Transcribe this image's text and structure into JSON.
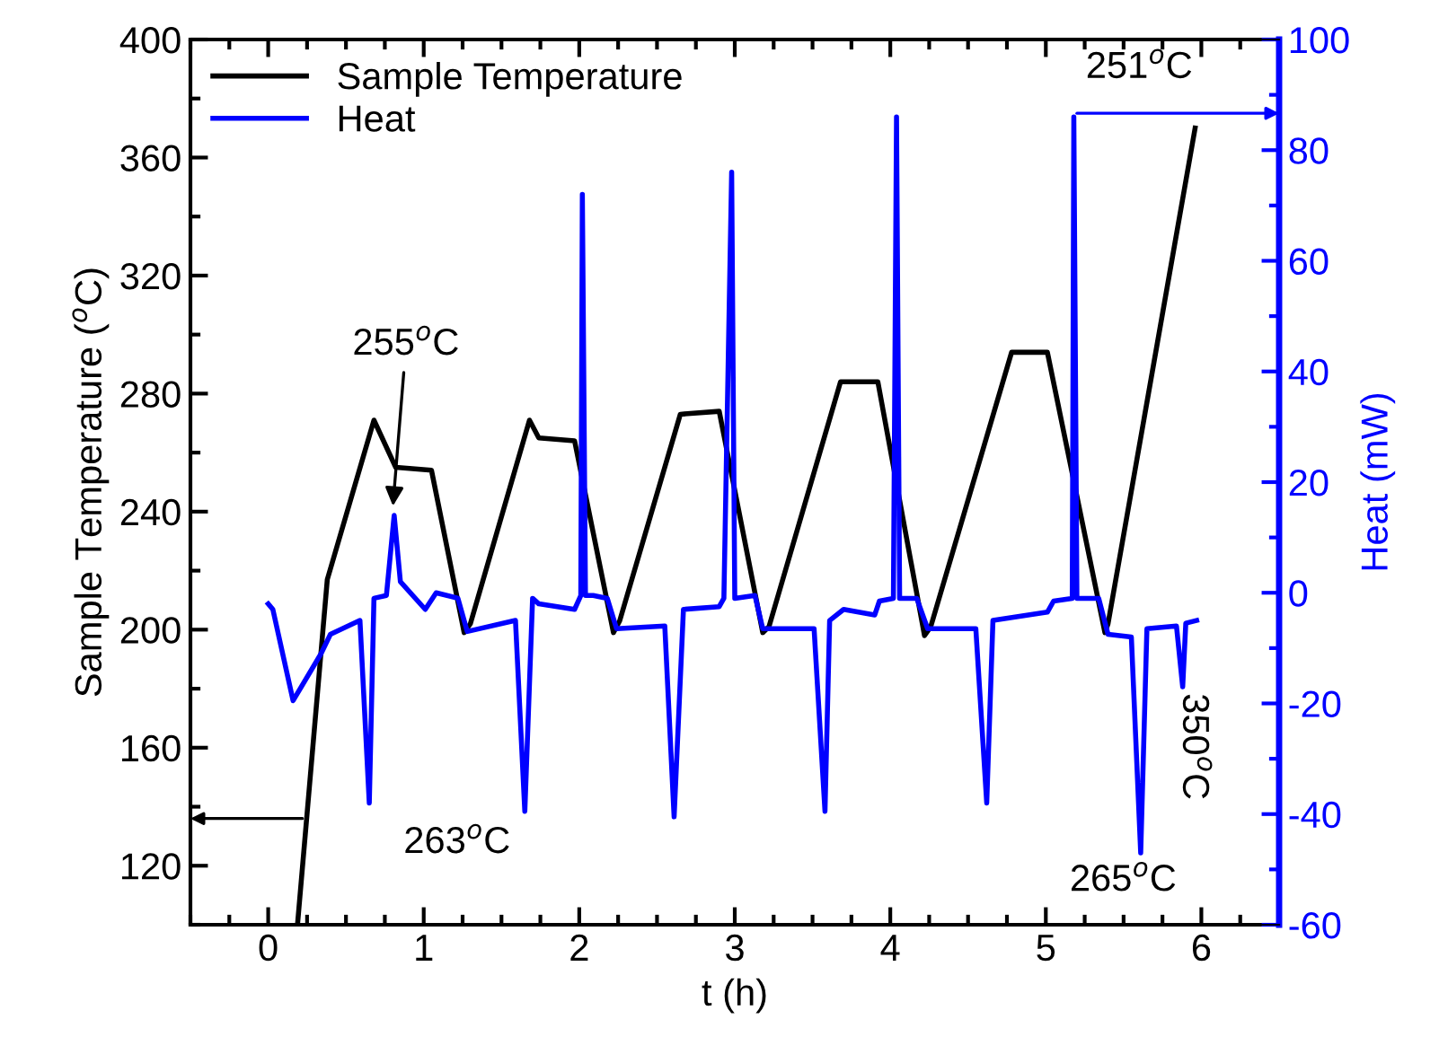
{
  "chart_data": {
    "type": "line",
    "xlabel": "t (h)",
    "ylabel": "Sample Temperature ($^{o}$C)",
    "y2label": "Heat (mW)",
    "xlim": [
      -0.5,
      6.5
    ],
    "xticks": [
      0,
      1,
      2,
      3,
      4,
      5,
      6
    ],
    "ylim": [
      100,
      400
    ],
    "yticks": [
      120,
      160,
      200,
      240,
      280,
      320,
      360,
      400
    ],
    "y2lim": [
      -60,
      100
    ],
    "y2ticks": [
      -60,
      -40,
      -20,
      0,
      20,
      40,
      60,
      80,
      100
    ],
    "legend": "top left",
    "grid": false,
    "series": [
      {
        "name": "Sample Temperature",
        "color": "#000000",
        "x": [
          0.19,
          0.38,
          0.68,
          0.82,
          1.05,
          1.26,
          1.3,
          1.68,
          1.74,
          1.97,
          2.22,
          2.26,
          2.65,
          2.9,
          3.18,
          3.22,
          3.68,
          3.92,
          4.22,
          4.26,
          4.78,
          5.01,
          5.38,
          5.4,
          5.96
        ],
        "values": [
          101,
          217,
          271,
          255,
          254,
          199,
          202,
          271,
          265,
          264,
          199,
          203,
          273,
          274,
          199,
          201,
          284,
          284,
          198,
          201,
          294,
          294,
          199,
          202,
          370
        ]
      },
      {
        "name": "Heat",
        "color": "#0000ff",
        "axis": "y2",
        "x": [
          0,
          0.03,
          0.16,
          0.34,
          0.4,
          0.59,
          0.65,
          0.68,
          0.76,
          0.81,
          0.85,
          1.01,
          1.08,
          1.22,
          1.28,
          1.59,
          1.65,
          1.7,
          1.74,
          1.97,
          2.01,
          2.02,
          2.04,
          2.09,
          2.18,
          2.24,
          2.55,
          2.61,
          2.67,
          2.9,
          2.93,
          2.98,
          3.0,
          3.13,
          3.18,
          3.51,
          3.58,
          3.61,
          3.7,
          3.9,
          3.93,
          4.02,
          4.04,
          4.06,
          4.17,
          4.24,
          4.55,
          4.62,
          4.66,
          5.01,
          5.05,
          5.17,
          5.18,
          5.2,
          5.34,
          5.4,
          5.55,
          5.61,
          5.65,
          5.84,
          5.88,
          5.9,
          5.97
        ],
        "values": [
          -2,
          -3,
          -19.5,
          -11,
          -7.5,
          -5,
          -38,
          -1,
          -0.5,
          14,
          2,
          -3,
          0,
          -1,
          -7,
          -5,
          -39.5,
          -1,
          -2,
          -3,
          -0.5,
          72,
          -0.5,
          -0.5,
          -1,
          -6.5,
          -6,
          -40.5,
          -3,
          -2.5,
          -1,
          76,
          -1,
          -0.5,
          -6.5,
          -6.5,
          -39.5,
          -5,
          -3,
          -4,
          -1.5,
          -1,
          86,
          -1,
          -1,
          -6.5,
          -6.5,
          -38,
          -5,
          -3.5,
          -1.5,
          -1,
          86,
          -1,
          -1,
          -7.5,
          -8,
          -47,
          -6.5,
          -6,
          -17,
          -5.5,
          -5
        ]
      }
    ],
    "annotations": [
      "255$^{o}$C",
      {
        "text": "263$^{o}$C",
        "x": 0.22,
        "y": 136
      },
      {
        "text": "265$^{o}$C",
        "x": 5.61,
        "y": 124
      },
      {
        "text": "350$^{o}$C",
        "x": 5.88,
        "y": 181
      },
      {
        "text": "251$^{o}$C",
        "x": 5.2,
        "y": 375
      }
    ]
  }
}
